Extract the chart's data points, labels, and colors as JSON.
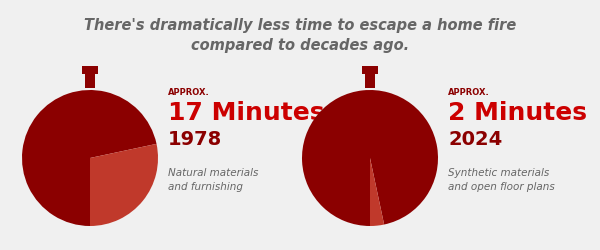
{
  "title_line1": "There's dramatically less time to escape a home fire",
  "title_line2": "compared to decades ago.",
  "title_fontsize": 10.5,
  "title_color": "#666666",
  "bg_color": "#f0f0f0",
  "chart1": {
    "minutes": 17,
    "total_minutes": 60,
    "main_color": "#8b0000",
    "slice_color": "#c0392b",
    "approx_label": "APPROX.",
    "minutes_label": "17 Minutes",
    "year_label": "1978",
    "desc_line1": "Natural materials",
    "desc_line2": "and furnishing"
  },
  "chart2": {
    "minutes": 2,
    "total_minutes": 60,
    "main_color": "#8b0000",
    "slice_color": "#c0392b",
    "approx_label": "APPROX.",
    "minutes_label": "2 Minutes",
    "year_label": "2024",
    "desc_line1": "Synthetic materials",
    "desc_line2": "and open floor plans"
  },
  "dark_red": "#6b0000",
  "bright_red": "#cc0000",
  "approx_color": "#8b0000",
  "year_color": "#8b0000",
  "desc_color": "#666666"
}
